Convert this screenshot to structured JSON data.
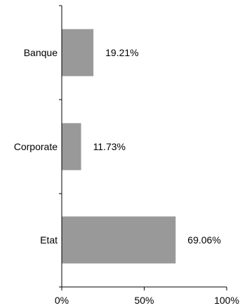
{
  "chart_data": {
    "type": "bar",
    "orientation": "horizontal",
    "categories": [
      "Banque",
      "Corporate",
      "Etat"
    ],
    "values": [
      19.21,
      11.73,
      69.06
    ],
    "value_labels": [
      "19.21%",
      "11.73%",
      "69.06%"
    ],
    "xlim": [
      0,
      100
    ],
    "x_ticks": [
      0,
      50,
      100
    ],
    "x_tick_labels": [
      "0%",
      "50%",
      "100%"
    ],
    "title": "",
    "xlabel": "",
    "ylabel": "",
    "grid": false,
    "bar_color": "#999999"
  }
}
